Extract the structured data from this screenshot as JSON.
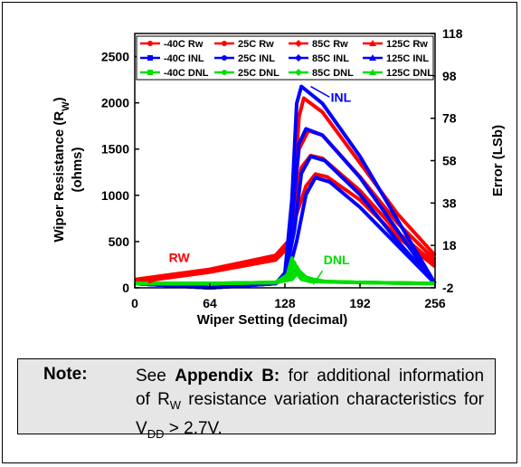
{
  "chart_data": {
    "type": "line",
    "xlabel": "Wiper Setting (decimal)",
    "ylabel_left": "Wiper Resistance (R",
    "ylabel_left_sub": "W",
    "ylabel_left_close": ")",
    "ylabel_left_line2": "(ohms)",
    "ylabel_right": "Error (LSb)",
    "xlim": [
      0,
      256
    ],
    "ylim_left": [
      0,
      2750
    ],
    "ylim_right": [
      -2,
      118
    ],
    "xticks": [
      "0",
      "64",
      "128",
      "192",
      "256"
    ],
    "xtick_values": [
      0,
      64,
      128,
      192,
      256
    ],
    "yticks_left": [
      "0",
      "500",
      "1000",
      "1500",
      "2000",
      "2500"
    ],
    "ytick_left_values": [
      0,
      500,
      1000,
      1500,
      2000,
      2500
    ],
    "yticks_right": [
      "-2",
      "18",
      "38",
      "58",
      "78",
      "98",
      "118"
    ],
    "ytick_right_values": [
      -2,
      18,
      38,
      58,
      78,
      98,
      118
    ],
    "legend": [
      {
        "label": "-40C Rw",
        "color": "#ff0000",
        "marker": "circle"
      },
      {
        "label": "25C Rw",
        "color": "#ff0000",
        "marker": "circle"
      },
      {
        "label": "85C Rw",
        "color": "#ff0000",
        "marker": "diamond"
      },
      {
        "label": "125C Rw",
        "color": "#ff0000",
        "marker": "triangle"
      },
      {
        "label": "-40C INL",
        "color": "#0000ff",
        "marker": "square"
      },
      {
        "label": "25C INL",
        "color": "#0000ff",
        "marker": "circle"
      },
      {
        "label": "85C INL",
        "color": "#0000ff",
        "marker": "diamond"
      },
      {
        "label": "125C INL",
        "color": "#0000ff",
        "marker": "triangle"
      },
      {
        "label": "-40C DNL",
        "color": "#00dd00",
        "marker": "square"
      },
      {
        "label": "25C DNL",
        "color": "#00dd00",
        "marker": "circle"
      },
      {
        "label": "85C DNL",
        "color": "#00dd00",
        "marker": "diamond"
      },
      {
        "label": "125C DNL",
        "color": "#00dd00",
        "marker": "triangle"
      }
    ],
    "legend_placement": "top",
    "annotations": [
      {
        "text": "INL",
        "color": "#0000ff"
      },
      {
        "text": "RW",
        "color": "#ff0000"
      },
      {
        "text": "DNL",
        "color": "#00dd00"
      }
    ],
    "series": [
      {
        "name": "-40C Rw",
        "color": "#ff0000",
        "axis": "left",
        "x": [
          0,
          64,
          120,
          132,
          136,
          140,
          144,
          160,
          192,
          224,
          256
        ],
        "y": [
          60,
          170,
          300,
          450,
          1100,
          1850,
          2050,
          1900,
          1350,
          800,
          350
        ]
      },
      {
        "name": "25C Rw",
        "color": "#ff0000",
        "axis": "left",
        "x": [
          0,
          64,
          120,
          132,
          136,
          140,
          148,
          160,
          192,
          224,
          256
        ],
        "y": [
          70,
          180,
          320,
          480,
          1000,
          1500,
          1700,
          1650,
          1200,
          700,
          300
        ]
      },
      {
        "name": "85C Rw",
        "color": "#ff0000",
        "axis": "left",
        "x": [
          0,
          64,
          120,
          132,
          136,
          142,
          150,
          160,
          192,
          224,
          256
        ],
        "y": [
          80,
          190,
          330,
          500,
          900,
          1300,
          1430,
          1400,
          1050,
          600,
          260
        ]
      },
      {
        "name": "125C Rw",
        "color": "#ff0000",
        "axis": "left",
        "x": [
          0,
          64,
          120,
          132,
          138,
          146,
          154,
          164,
          192,
          224,
          256
        ],
        "y": [
          90,
          200,
          350,
          520,
          800,
          1100,
          1230,
          1200,
          950,
          550,
          230
        ]
      },
      {
        "name": "-40C INL",
        "color": "#0000ff",
        "axis": "right",
        "x": [
          0,
          64,
          120,
          128,
          134,
          138,
          142,
          160,
          192,
          224,
          256
        ],
        "y": [
          0,
          -2,
          0,
          5,
          40,
          85,
          93,
          85,
          60,
          30,
          0
        ]
      },
      {
        "name": "25C INL",
        "color": "#0000ff",
        "axis": "right",
        "x": [
          0,
          64,
          120,
          128,
          134,
          140,
          146,
          160,
          192,
          224,
          256
        ],
        "y": [
          0,
          -2,
          0,
          4,
          30,
          66,
          73,
          70,
          50,
          25,
          0
        ]
      },
      {
        "name": "85C INL",
        "color": "#0000ff",
        "axis": "right",
        "x": [
          0,
          64,
          120,
          128,
          136,
          142,
          150,
          162,
          192,
          224,
          256
        ],
        "y": [
          0,
          -2,
          0,
          3,
          25,
          52,
          60,
          58,
          42,
          20,
          0
        ]
      },
      {
        "name": "125C INL",
        "color": "#0000ff",
        "axis": "right",
        "x": [
          0,
          64,
          120,
          130,
          138,
          146,
          154,
          166,
          192,
          224,
          256
        ],
        "y": [
          0,
          -2,
          0,
          3,
          20,
          42,
          50,
          48,
          36,
          18,
          0
        ]
      },
      {
        "name": "-40C DNL",
        "color": "#00dd00",
        "axis": "right",
        "x": [
          0,
          64,
          120,
          130,
          134,
          138,
          142,
          150,
          192,
          256
        ],
        "y": [
          0,
          0,
          0.5,
          4,
          12,
          5,
          2,
          1,
          0.5,
          0
        ]
      },
      {
        "name": "25C DNL",
        "color": "#00dd00",
        "axis": "right",
        "x": [
          0,
          64,
          120,
          130,
          136,
          140,
          146,
          154,
          192,
          256
        ],
        "y": [
          0,
          0,
          0.5,
          3,
          10,
          4,
          2,
          1,
          0.5,
          0
        ]
      },
      {
        "name": "85C DNL",
        "color": "#00dd00",
        "axis": "right",
        "x": [
          0,
          64,
          120,
          132,
          138,
          142,
          148,
          158,
          192,
          256
        ],
        "y": [
          0,
          0,
          0.5,
          3,
          8,
          4,
          2,
          1,
          0.5,
          0
        ]
      },
      {
        "name": "125C DNL",
        "color": "#00dd00",
        "axis": "right",
        "x": [
          0,
          64,
          120,
          134,
          140,
          146,
          152,
          162,
          192,
          256
        ],
        "y": [
          0,
          0,
          0.5,
          2,
          6,
          3,
          2,
          1,
          0.5,
          0
        ]
      }
    ]
  },
  "note": {
    "label": "Note:",
    "text_before": "See ",
    "text_bold": "Appendix B:",
    "text_after": " for additional information of R",
    "sub1": "W",
    "text_after2": " resistance variation characteristics for V",
    "sub2": "DD",
    "text_end": " > 2.7V."
  }
}
